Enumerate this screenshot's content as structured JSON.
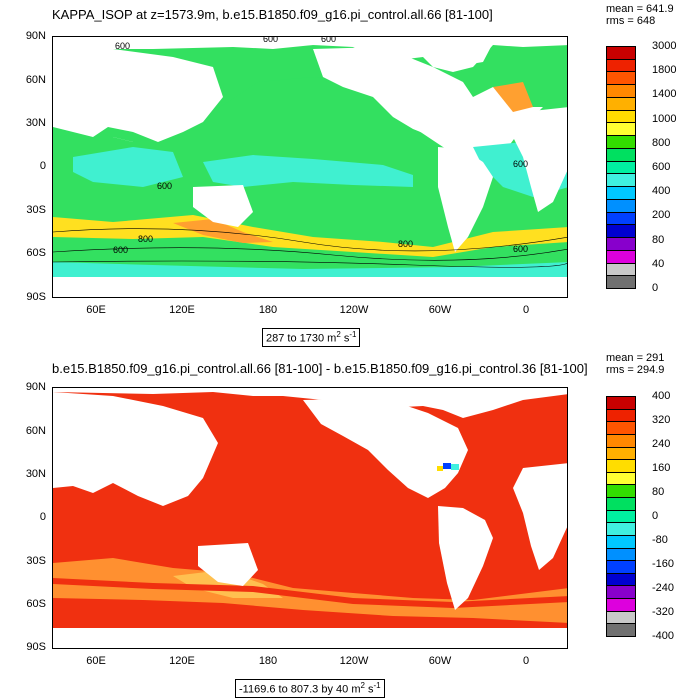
{
  "panels": [
    {
      "title": "KAPPA_ISOP at z=1573.9m, b.e15.B1850.f09_g16.pi_control.all.66 [81-100]",
      "stats": {
        "mean": "mean = 641.9",
        "rms": "rms = 648"
      },
      "range": {
        "text": "287 to 1730 m",
        "sup1": "2",
        "mid": " s",
        "sup2": "-1"
      },
      "lat_labels": [
        "90N",
        "60N",
        "30N",
        "0",
        "30S",
        "60S",
        "90S"
      ],
      "lon_labels": [
        "60E",
        "120E",
        "180",
        "120W",
        "60W",
        "0"
      ],
      "contour_labels": [
        "600",
        "600",
        "600",
        "600",
        "800",
        "800",
        "600",
        "600",
        "600"
      ],
      "colorbar": {
        "labels": [
          "3000",
          "1800",
          "1400",
          "1000",
          "800",
          "600",
          "400",
          "200",
          "80",
          "40",
          "0"
        ],
        "colors": [
          "#c80000",
          "#ee2200",
          "#ff5500",
          "#ff8800",
          "#ffb000",
          "#ffdd00",
          "#ffff33",
          "#33dd00",
          "#00e060",
          "#00f0a0",
          "#40f0e0",
          "#00c8ff",
          "#0090ff",
          "#0040ff",
          "#0000d0",
          "#8800cc",
          "#dd00dd",
          "#c8c8c8",
          "#707070"
        ]
      }
    },
    {
      "title": "b.e15.B1850.f09_g16.pi_control.all.66 [81-100] - b.e15.B1850.f09_g16.pi_control.36 [81-100]",
      "stats": {
        "mean": "mean = 291",
        "rms": "rms = 294.9"
      },
      "range": {
        "text": "-1169.6 to 807.3 by 40 m",
        "sup1": "2",
        "mid": " s",
        "sup2": "-1"
      },
      "lat_labels": [
        "90N",
        "60N",
        "30N",
        "0",
        "30S",
        "60S",
        "90S"
      ],
      "lon_labels": [
        "60E",
        "120E",
        "180",
        "120W",
        "60W",
        "0"
      ],
      "colorbar": {
        "labels": [
          "400",
          "320",
          "240",
          "160",
          "80",
          "0",
          "-80",
          "-160",
          "-240",
          "-320",
          "-400"
        ],
        "colors": [
          "#c80000",
          "#ee2200",
          "#ff5500",
          "#ff8800",
          "#ffb000",
          "#ffdd00",
          "#ffff33",
          "#33dd00",
          "#00e060",
          "#00f0a0",
          "#40f0e0",
          "#00c8ff",
          "#0090ff",
          "#0040ff",
          "#0000d0",
          "#8800cc",
          "#dd00dd",
          "#c8c8c8",
          "#707070"
        ]
      }
    }
  ],
  "colors": {
    "top_ocean": "#33e060",
    "top_cyan": "#40f0d0",
    "top_yellow": "#ffe020",
    "top_orange": "#ffa030",
    "bottom_red": "#f03010",
    "bottom_orange": "#ff9030",
    "bottom_lightorange": "#ffc050",
    "land": "#ffffff"
  }
}
